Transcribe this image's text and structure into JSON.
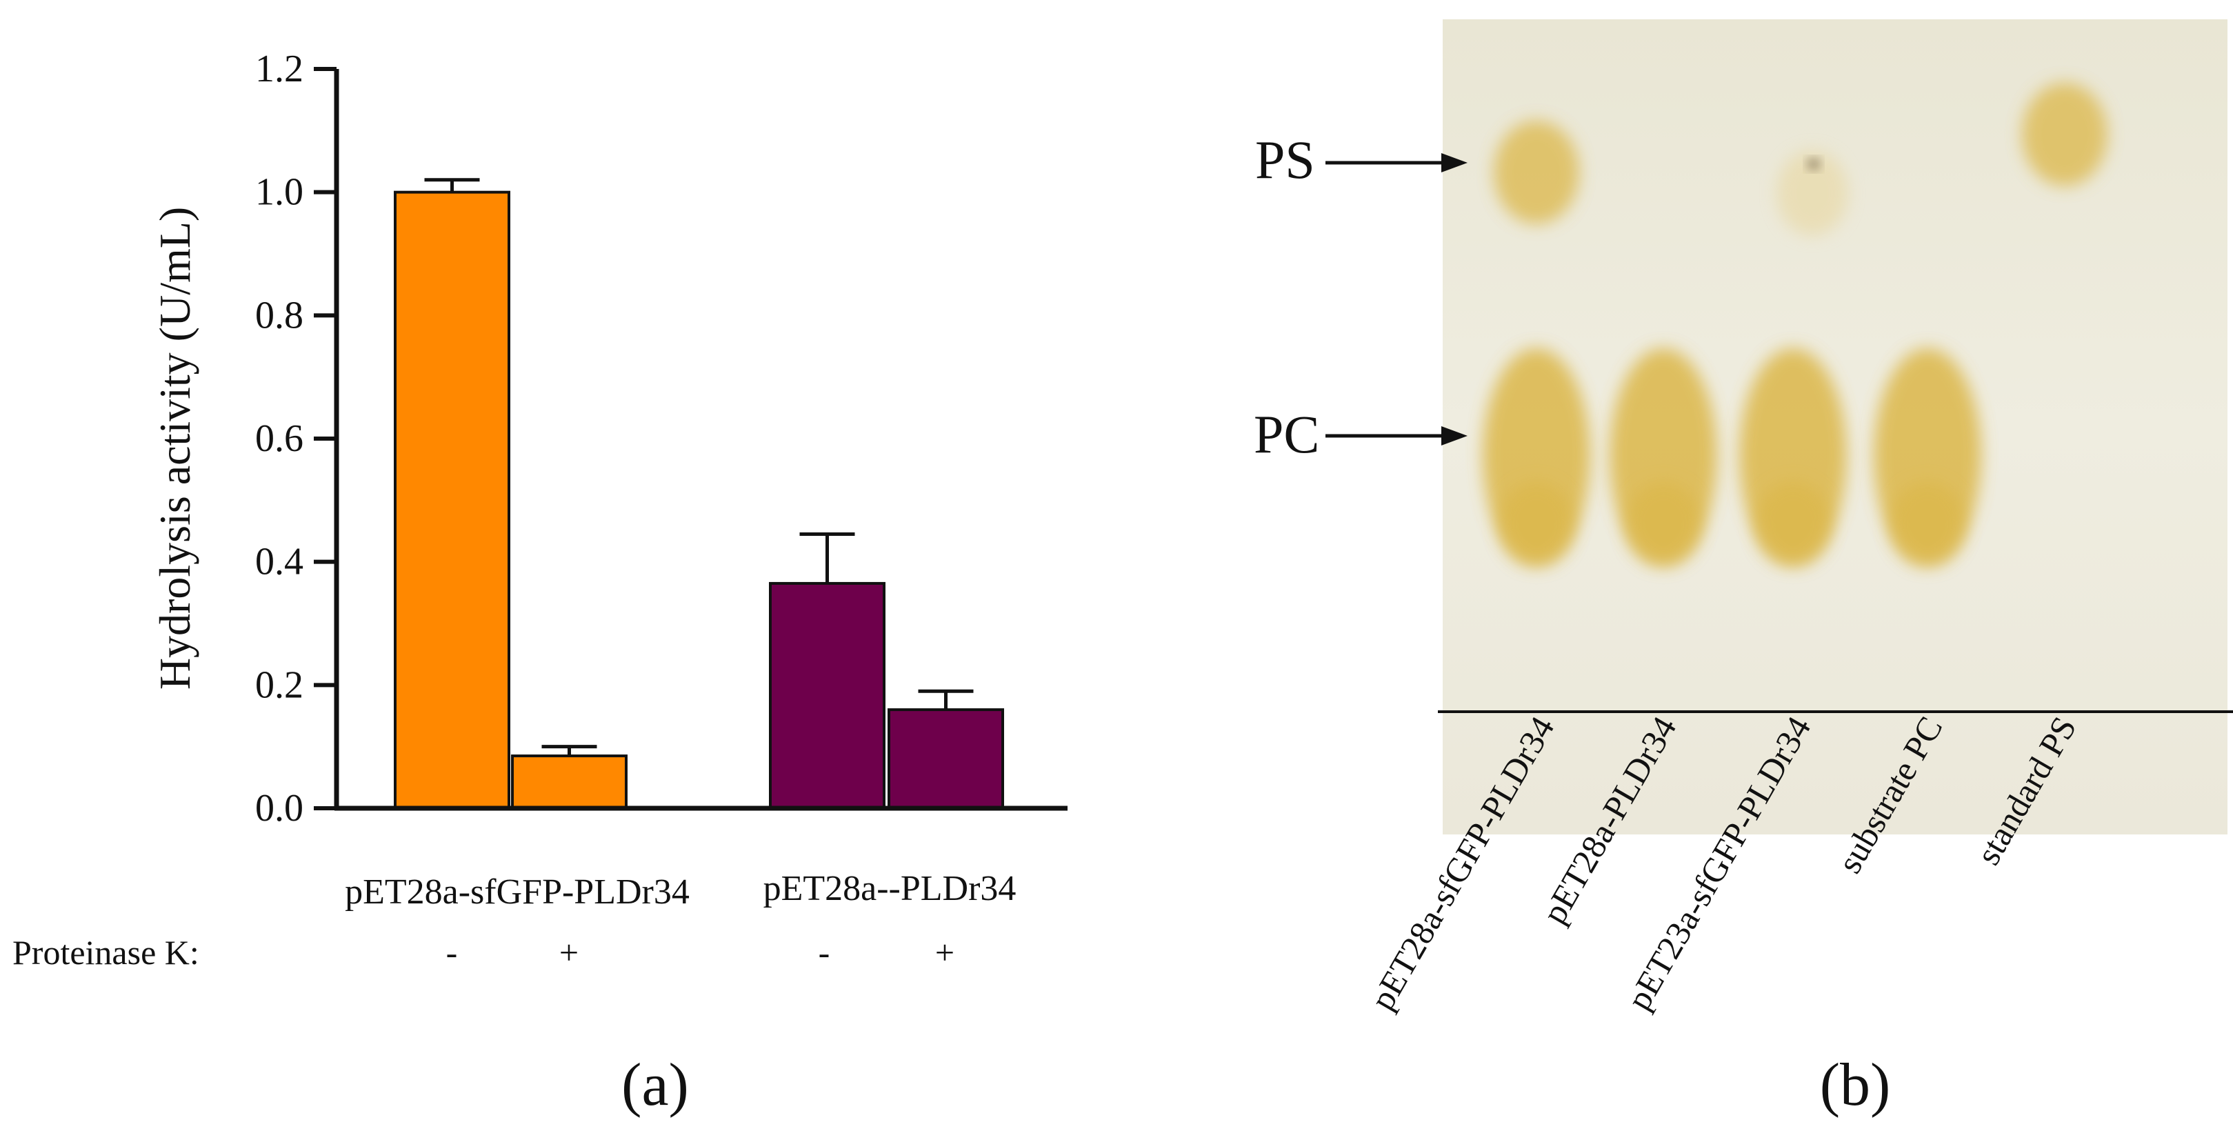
{
  "panel_a": {
    "label": "(a)",
    "proteinase_label": "Proteinase K:"
  },
  "panel_b": {
    "label": "(b)",
    "markers": {
      "ps": "PS",
      "pc": "PC"
    },
    "lanes": [
      {
        "label": "pET28a-sfGFP-PLDr34",
        "has_ps": true,
        "has_pc": true
      },
      {
        "label": "pET28a-PLDr34",
        "has_ps": false,
        "has_pc": true
      },
      {
        "label": "pET23a-sfGFP-PLDr34",
        "has_ps": true,
        "has_pc": true
      },
      {
        "label": "substrate PC",
        "has_ps": false,
        "has_pc": true
      },
      {
        "label": "standard PS",
        "has_ps": true,
        "has_pc": false
      }
    ],
    "colors": {
      "plate": "#efeddf",
      "spot": "#dcb748",
      "spot_faint": "#e8d7a0"
    }
  },
  "chart_data": {
    "type": "bar",
    "title": "",
    "xlabel": "",
    "ylabel": "Hydrolysis activity (U/mL)",
    "ylim": [
      0,
      1.2
    ],
    "yticks": [
      "0.0",
      "0.2",
      "0.4",
      "0.6",
      "0.8",
      "1.0",
      "1.2"
    ],
    "groups": [
      {
        "name": "pET28a-sfGFP-PLDr34",
        "color": "#ff8800",
        "bars": [
          {
            "treatment": "-",
            "value": 1.0,
            "error": 0.02
          },
          {
            "treatment": "+",
            "value": 0.085,
            "error": 0.015
          }
        ]
      },
      {
        "name": "pET28a--PLDr34",
        "color": "#6e004b",
        "bars": [
          {
            "treatment": "-",
            "value": 0.365,
            "error": 0.08
          },
          {
            "treatment": "+",
            "value": 0.16,
            "error": 0.03
          }
        ]
      }
    ]
  }
}
